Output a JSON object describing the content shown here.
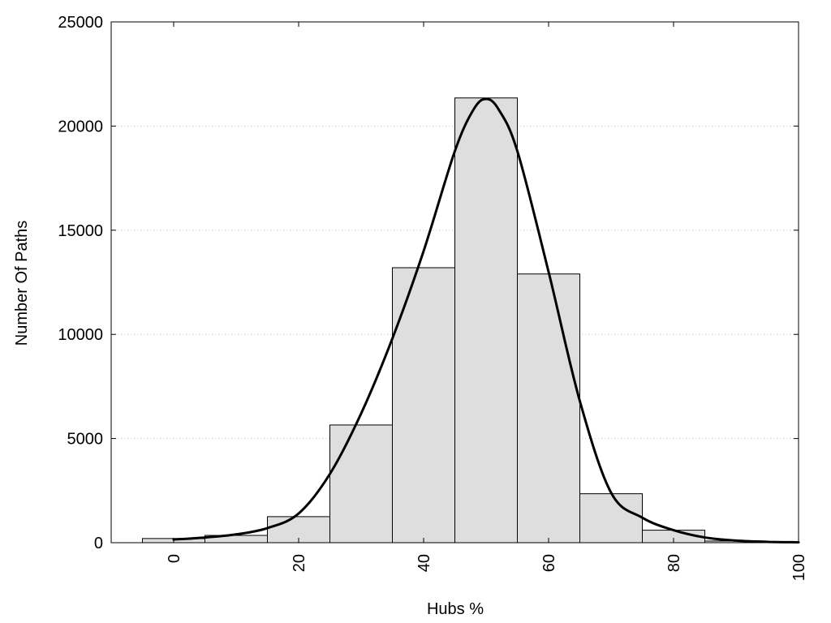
{
  "chart_data": {
    "type": "bar",
    "xlabel": "Hubs %",
    "ylabel": "Number Of Paths",
    "xlim": [
      -10,
      100
    ],
    "ylim": [
      0,
      25000
    ],
    "xticks": [
      0,
      20,
      40,
      60,
      80,
      100
    ],
    "yticks": [
      0,
      5000,
      10000,
      15000,
      20000,
      25000
    ],
    "x_tick_labels": [
      "0",
      "20",
      "40",
      "60",
      "80",
      "100"
    ],
    "y_tick_labels": [
      "0",
      "5000",
      "10000",
      "15000",
      "20000",
      "25000"
    ],
    "x_tick_rotation": "vertical",
    "grid": "horizontal dotted",
    "legend": "none",
    "bin_width": 10,
    "bars": {
      "centers": [
        0,
        10,
        20,
        30,
        40,
        50,
        60,
        70,
        80,
        90
      ],
      "values": [
        200,
        350,
        1250,
        5650,
        13200,
        21350,
        12900,
        2350,
        600,
        80
      ]
    },
    "curve": {
      "x": [
        0,
        5,
        10,
        15,
        20,
        25,
        30,
        35,
        40,
        45,
        48,
        50,
        52,
        55,
        60,
        65,
        70,
        75,
        80,
        85,
        90,
        95,
        100
      ],
      "y": [
        150,
        250,
        400,
        700,
        1400,
        3300,
        6200,
        9800,
        14000,
        18800,
        20800,
        21300,
        20800,
        18800,
        13000,
        6800,
        2400,
        1200,
        600,
        250,
        100,
        40,
        20
      ]
    },
    "colors": {
      "bar_fill": "#dedede",
      "bar_edge": "#000000",
      "curve": "#000000",
      "grid": "#c8c8c8"
    }
  }
}
